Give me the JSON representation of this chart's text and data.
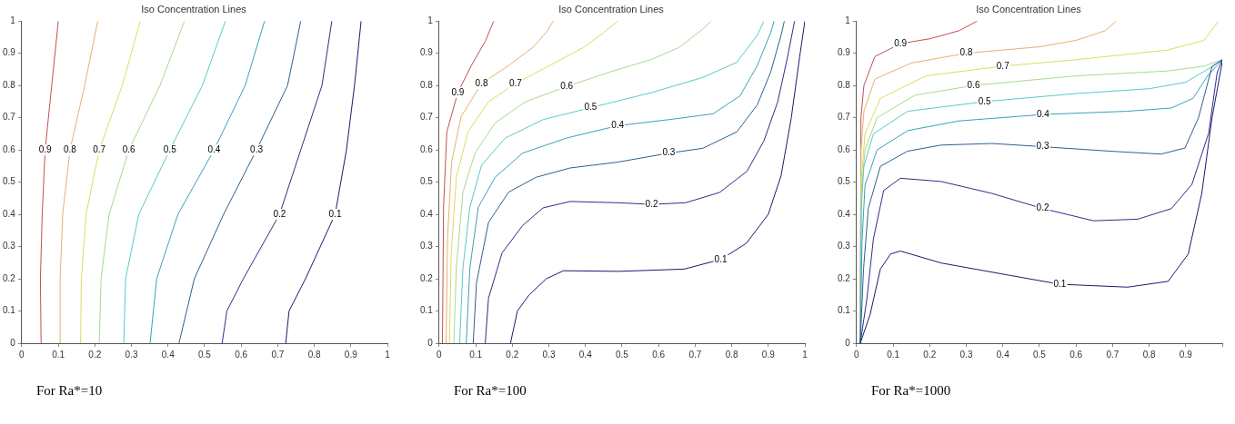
{
  "chart_data": [
    {
      "type": "line",
      "title": "Iso Concentration Lines",
      "annotations": [
        "For Ra*=10"
      ],
      "xlim": [
        0,
        1
      ],
      "ylim": [
        0,
        1
      ],
      "xticks": [
        0,
        0.1,
        0.2,
        0.3,
        0.4,
        0.5,
        0.6,
        0.7,
        0.8,
        0.9,
        1
      ],
      "yticks": [
        0,
        0.1,
        0.2,
        0.3,
        0.4,
        0.5,
        0.6,
        0.7,
        0.8,
        0.9,
        1
      ],
      "grid": false,
      "legend": false,
      "series": [
        {
          "name": "0.1",
          "color": "#1a1a6e",
          "x": [
            0.722,
            0.731,
            0.776,
            0.857,
            0.888,
            0.91,
            0.928
          ],
          "values": [
            0,
            0.1,
            0.2,
            0.4,
            0.6,
            0.8,
            1
          ]
        },
        {
          "name": "0.2",
          "color": "#2e2e8a",
          "x": [
            0.548,
            0.561,
            0.606,
            0.705,
            0.763,
            0.821,
            0.848
          ],
          "values": [
            0,
            0.1,
            0.2,
            0.4,
            0.6,
            0.8,
            1
          ]
        },
        {
          "name": "0.3",
          "color": "#2f5f8f",
          "x": [
            0.43,
            0.472,
            0.552,
            0.642,
            0.727,
            0.763
          ],
          "values": [
            0,
            0.2,
            0.4,
            0.6,
            0.8,
            1
          ]
        },
        {
          "name": "0.4",
          "color": "#3aa0b8",
          "x": [
            0.351,
            0.369,
            0.427,
            0.526,
            0.611,
            0.664
          ],
          "values": [
            0,
            0.2,
            0.4,
            0.6,
            0.8,
            1
          ]
        },
        {
          "name": "0.5",
          "color": "#5cc8c8",
          "x": [
            0.279,
            0.284,
            0.32,
            0.405,
            0.494,
            0.557
          ],
          "values": [
            0,
            0.2,
            0.4,
            0.6,
            0.8,
            1
          ]
        },
        {
          "name": "0.6",
          "color": "#a8d890",
          "x": [
            0.212,
            0.217,
            0.239,
            0.293,
            0.378,
            0.445
          ],
          "values": [
            0,
            0.2,
            0.4,
            0.6,
            0.8,
            1
          ]
        },
        {
          "name": "0.7",
          "color": "#e0d860",
          "x": [
            0.161,
            0.163,
            0.176,
            0.212,
            0.275,
            0.324
          ],
          "values": [
            0,
            0.2,
            0.4,
            0.6,
            0.8,
            1
          ]
        },
        {
          "name": "0.8",
          "color": "#e8b070",
          "x": [
            0.107,
            0.105,
            0.112,
            0.132,
            0.172,
            0.208
          ],
          "values": [
            0,
            0.2,
            0.4,
            0.6,
            0.8,
            1
          ]
        },
        {
          "name": "0.9",
          "color": "#c05050",
          "x": [
            0.053,
            0.051,
            0.056,
            0.064,
            0.082,
            0.1
          ],
          "values": [
            0,
            0.2,
            0.4,
            0.6,
            0.8,
            1
          ]
        }
      ]
    },
    {
      "type": "line",
      "title": "Iso Concentration Lines",
      "annotations": [
        "For Ra*=100"
      ],
      "xlim": [
        0,
        1
      ],
      "ylim": [
        0,
        1
      ],
      "xticks": [
        0,
        0.1,
        0.2,
        0.3,
        0.4,
        0.5,
        0.6,
        0.7,
        0.8,
        0.9,
        1
      ],
      "yticks": [
        0,
        0.1,
        0.2,
        0.3,
        0.4,
        0.5,
        0.6,
        0.7,
        0.8,
        0.9,
        1
      ],
      "grid": false,
      "legend": false,
      "series": [
        {
          "name": "0.1",
          "color": "#1a1a6e",
          "x": [
            0.195,
            0.214,
            0.246,
            0.293,
            0.34,
            0.49,
            0.67,
            0.77,
            0.84,
            0.9,
            0.935,
            0.963,
            0.986,
            1
          ],
          "values": [
            0,
            0.1,
            0.15,
            0.2,
            0.225,
            0.223,
            0.23,
            0.26,
            0.31,
            0.4,
            0.52,
            0.7,
            0.89,
            1
          ]
        },
        {
          "name": "0.2",
          "color": "#2e2e8a",
          "x": [
            0.126,
            0.135,
            0.172,
            0.228,
            0.284,
            0.358,
            0.488,
            0.581,
            0.674,
            0.767,
            0.842,
            0.888,
            0.926,
            0.953,
            0.972
          ],
          "values": [
            0,
            0.14,
            0.28,
            0.365,
            0.42,
            0.44,
            0.436,
            0.431,
            0.436,
            0.468,
            0.534,
            0.628,
            0.75,
            0.89,
            1
          ]
        },
        {
          "name": "0.3",
          "color": "#2f5f8f",
          "x": [
            0.093,
            0.102,
            0.135,
            0.19,
            0.265,
            0.358,
            0.488,
            0.628,
            0.721,
            0.814,
            0.87,
            0.907,
            0.935,
            0.944
          ],
          "values": [
            0,
            0.187,
            0.375,
            0.469,
            0.515,
            0.544,
            0.562,
            0.59,
            0.605,
            0.656,
            0.74,
            0.843,
            0.956,
            1
          ]
        },
        {
          "name": "0.4",
          "color": "#3aa0b8",
          "x": [
            0.074,
            0.084,
            0.107,
            0.153,
            0.228,
            0.349,
            0.488,
            0.628,
            0.749,
            0.823,
            0.87,
            0.907,
            0.916
          ],
          "values": [
            0,
            0.234,
            0.422,
            0.515,
            0.59,
            0.637,
            0.675,
            0.694,
            0.712,
            0.768,
            0.862,
            0.965,
            1
          ]
        },
        {
          "name": "0.5",
          "color": "#5cc8c8",
          "x": [
            0.056,
            0.065,
            0.084,
            0.116,
            0.181,
            0.284,
            0.414,
            0.581,
            0.721,
            0.814,
            0.87,
            0.888
          ],
          "values": [
            0,
            0.234,
            0.422,
            0.553,
            0.637,
            0.694,
            0.731,
            0.778,
            0.825,
            0.872,
            0.956,
            1
          ]
        },
        {
          "name": "0.6",
          "color": "#a8d890",
          "x": [
            0.04,
            0.047,
            0.065,
            0.098,
            0.153,
            0.237,
            0.349,
            0.47,
            0.581,
            0.656,
            0.721,
            0.744
          ],
          "values": [
            0,
            0.234,
            0.469,
            0.59,
            0.684,
            0.75,
            0.797,
            0.843,
            0.881,
            0.918,
            0.975,
            1
          ]
        },
        {
          "name": "0.7",
          "color": "#e0d860",
          "x": [
            0.028,
            0.033,
            0.047,
            0.079,
            0.135,
            0.209,
            0.302,
            0.395,
            0.451,
            0.488
          ],
          "values": [
            0,
            0.281,
            0.515,
            0.656,
            0.75,
            0.806,
            0.862,
            0.918,
            0.965,
            1
          ]
        },
        {
          "name": "0.8",
          "color": "#e8b070",
          "x": [
            0.019,
            0.023,
            0.034,
            0.06,
            0.116,
            0.19,
            0.256,
            0.293,
            0.312
          ],
          "values": [
            0,
            0.328,
            0.562,
            0.703,
            0.806,
            0.862,
            0.918,
            0.965,
            1
          ]
        },
        {
          "name": "0.9",
          "color": "#c05050",
          "x": [
            0.009,
            0.012,
            0.021,
            0.051,
            0.088,
            0.126,
            0.149
          ],
          "values": [
            0,
            0.422,
            0.656,
            0.778,
            0.862,
            0.937,
            1
          ]
        }
      ]
    },
    {
      "type": "line",
      "title": "Iso Concentration Lines",
      "annotations": [
        "For Ra*=1000"
      ],
      "xlim": [
        0,
        1
      ],
      "ylim": [
        0,
        1
      ],
      "xticks": [
        0,
        0.1,
        0.2,
        0.3,
        0.4,
        0.5,
        0.6,
        0.7,
        0.8,
        0.9,
        {
          "value": 1,
          "label": null
        }
      ],
      "yticks": [
        0,
        0.1,
        0.2,
        0.3,
        0.4,
        0.5,
        0.6,
        0.7,
        0.8,
        0.9,
        1
      ],
      "grid": false,
      "legend": false,
      "series": [
        {
          "name": "0.1",
          "color": "#1a1a6e",
          "x": [
            0.01,
            0.037,
            0.065,
            0.093,
            0.12,
            0.231,
            0.417,
            0.556,
            0.741,
            0.852,
            0.907,
            0.944,
            0.972,
            1
          ],
          "values": [
            0,
            0.089,
            0.23,
            0.277,
            0.286,
            0.249,
            0.211,
            0.183,
            0.174,
            0.192,
            0.277,
            0.465,
            0.7,
            0.873
          ]
        },
        {
          "name": "0.2",
          "color": "#2e2e8a",
          "x": [
            0.01,
            0.028,
            0.046,
            0.074,
            0.12,
            0.231,
            0.37,
            0.509,
            0.648,
            0.769,
            0.861,
            0.917,
            0.963,
            0.986,
            1
          ],
          "values": [
            0,
            0.136,
            0.324,
            0.474,
            0.512,
            0.502,
            0.465,
            0.418,
            0.38,
            0.385,
            0.418,
            0.493,
            0.653,
            0.84,
            0.88
          ]
        },
        {
          "name": "0.3",
          "color": "#2f5f8f",
          "x": [
            0.01,
            0.019,
            0.032,
            0.065,
            0.139,
            0.231,
            0.37,
            0.509,
            0.694,
            0.833,
            0.898,
            0.935,
            0.972,
            1
          ],
          "values": [
            0,
            0.23,
            0.418,
            0.549,
            0.596,
            0.615,
            0.62,
            0.61,
            0.596,
            0.587,
            0.606,
            0.7,
            0.859,
            0.88
          ]
        },
        {
          "name": "0.4",
          "color": "#3aa0b8",
          "x": [
            0.01,
            0.015,
            0.023,
            0.056,
            0.14,
            0.28,
            0.51,
            0.74,
            0.86,
            0.92,
            0.96,
            1
          ],
          "values": [
            0,
            0.32,
            0.49,
            0.6,
            0.66,
            0.69,
            0.71,
            0.72,
            0.73,
            0.76,
            0.83,
            0.88
          ]
        },
        {
          "name": "0.5",
          "color": "#5cc8c8",
          "x": [
            0.01,
            0.013,
            0.02,
            0.046,
            0.14,
            0.35,
            0.6,
            0.8,
            0.9,
            0.96,
            1
          ],
          "values": [
            0,
            0.42,
            0.55,
            0.65,
            0.72,
            0.75,
            0.775,
            0.79,
            0.81,
            0.85,
            0.88
          ]
        },
        {
          "name": "0.6",
          "color": "#a8d890",
          "x": [
            0.01,
            0.013,
            0.023,
            0.056,
            0.16,
            0.32,
            0.6,
            0.85,
            0.95,
            1
          ],
          "values": [
            0,
            0.47,
            0.6,
            0.7,
            0.77,
            0.8,
            0.83,
            0.845,
            0.86,
            0.88
          ]
        },
        {
          "name": "0.7",
          "color": "#e0d860",
          "x": [
            0.01,
            0.013,
            0.023,
            0.065,
            0.19,
            0.4,
            0.6,
            0.85,
            0.95,
            0.99
          ],
          "values": [
            0,
            0.51,
            0.65,
            0.76,
            0.83,
            0.86,
            0.88,
            0.91,
            0.94,
            1
          ]
        },
        {
          "name": "0.8",
          "color": "#e8b070",
          "x": [
            0.01,
            0.012,
            0.02,
            0.05,
            0.15,
            0.3,
            0.5,
            0.6,
            0.68,
            0.71
          ],
          "values": [
            0,
            0.6,
            0.72,
            0.82,
            0.87,
            0.9,
            0.92,
            0.94,
            0.97,
            1
          ]
        },
        {
          "name": "0.9",
          "color": "#c05050",
          "x": [
            0.01,
            0.012,
            0.02,
            0.05,
            0.12,
            0.2,
            0.28,
            0.33
          ],
          "values": [
            0,
            0.7,
            0.8,
            0.89,
            0.93,
            0.945,
            0.97,
            1
          ]
        }
      ]
    }
  ]
}
